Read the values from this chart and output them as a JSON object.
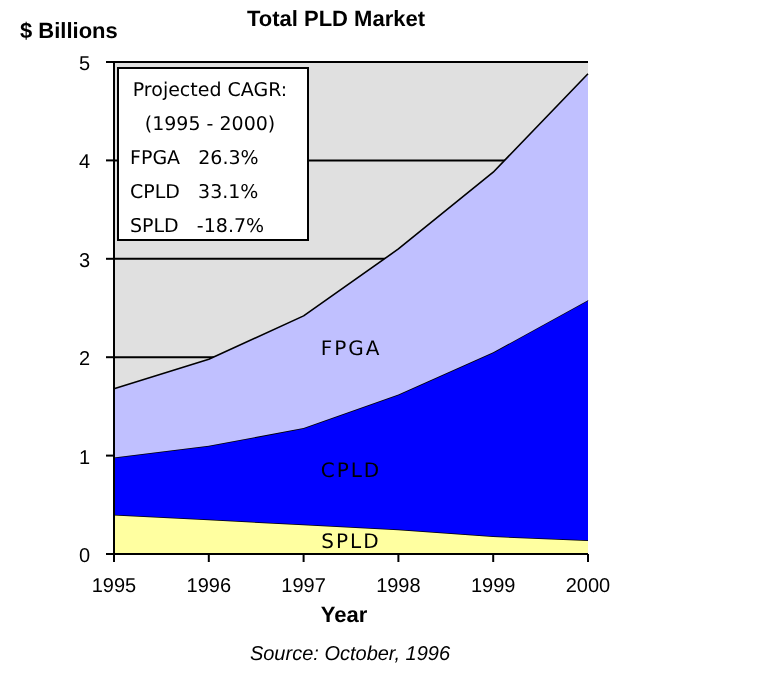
{
  "chart_data": {
    "type": "area",
    "stacked": true,
    "title": "Total PLD Market",
    "ylabel": "$ Billions",
    "xlabel": "Year",
    "x": [
      1995,
      1996,
      1997,
      1998,
      1999,
      2000
    ],
    "xlim": [
      1995,
      2000
    ],
    "xticks": [
      1995,
      1996,
      1997,
      1998,
      1999,
      2000
    ],
    "ylim": [
      0,
      5
    ],
    "yticks": [
      0,
      1,
      2,
      3,
      4,
      5
    ],
    "grid": "y",
    "series": [
      {
        "name": "SPLD",
        "color": "#ffffa0",
        "values": [
          0.4,
          0.35,
          0.3,
          0.25,
          0.18,
          0.14
        ]
      },
      {
        "name": "CPLD",
        "color": "#0000ff",
        "values": [
          0.58,
          0.75,
          0.98,
          1.37,
          1.87,
          2.44
        ]
      },
      {
        "name": "FPGA",
        "color": "#c0c0ff",
        "values": [
          0.7,
          0.88,
          1.14,
          1.48,
          1.83,
          2.3
        ]
      }
    ],
    "annotations": [
      "Projected CAGR:",
      "(1995 - 2000)",
      "FPGA   26.3%",
      "CPLD   33.1%",
      "SPLD   -18.7%",
      "Source: October, 1996"
    ]
  }
}
